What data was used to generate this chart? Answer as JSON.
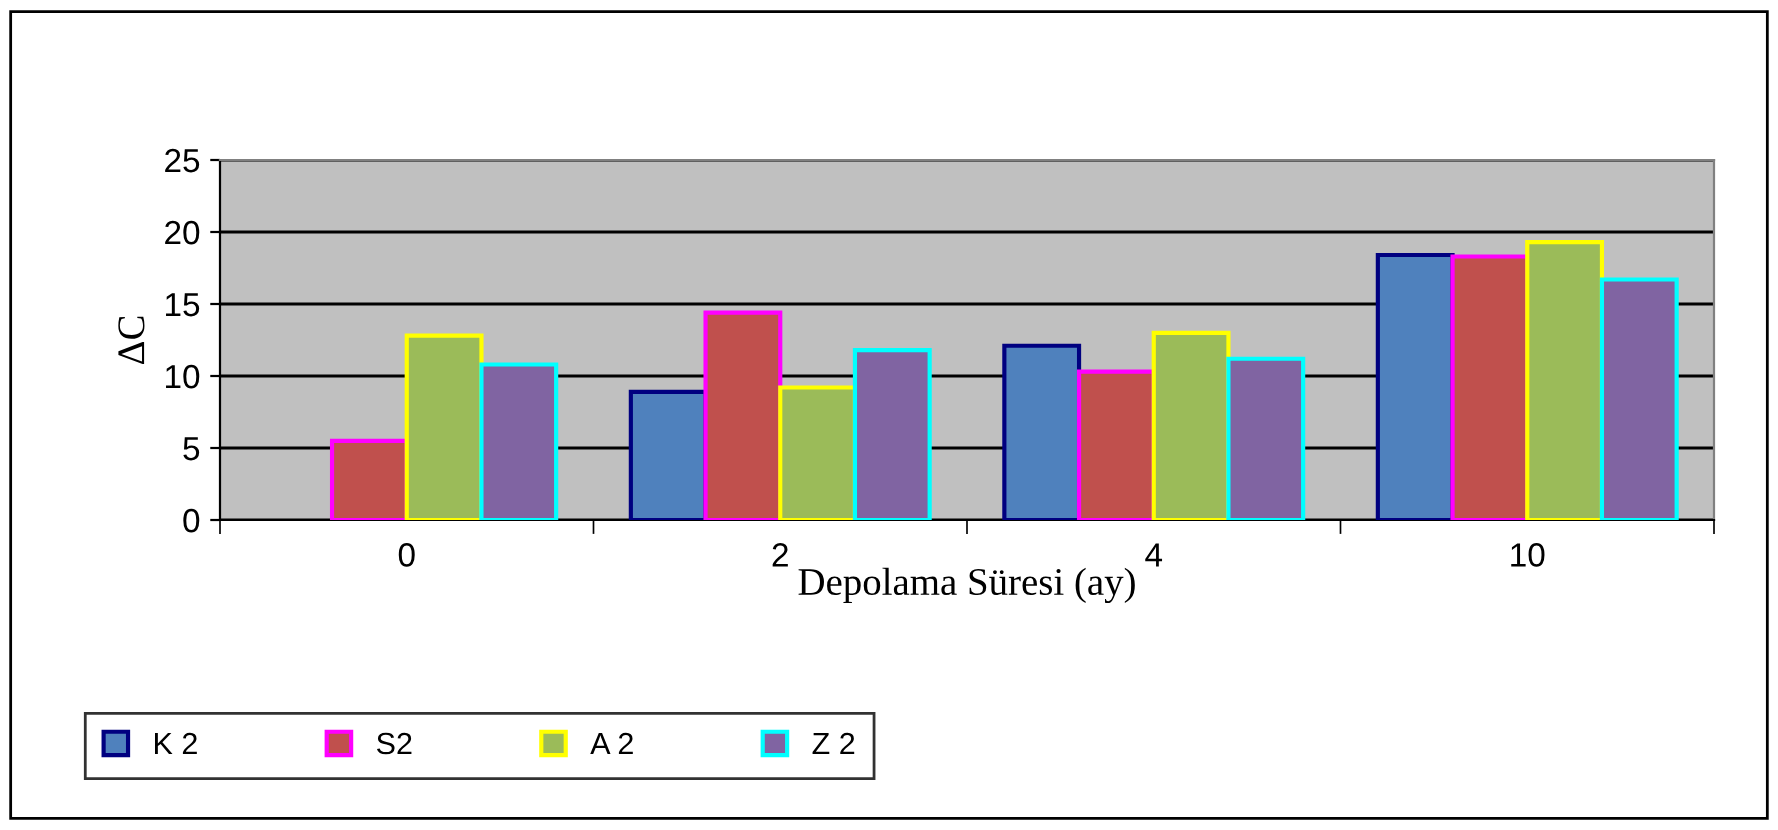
{
  "chart_data": {
    "type": "bar",
    "xlabel": "Depolama Süresi (ay)",
    "ylabel": "ΔC",
    "categories": [
      "0",
      "2",
      "4",
      "10"
    ],
    "series": [
      {
        "name": "K 2",
        "color": "#4f81bd",
        "values": [
          null,
          8.9,
          12.1,
          18.4
        ]
      },
      {
        "name": "S2",
        "color": "#c0504d",
        "values": [
          5.5,
          14.4,
          10.3,
          18.3
        ]
      },
      {
        "name": "A 2",
        "color": "#9bbb59",
        "values": [
          12.8,
          9.2,
          13.0,
          19.3
        ]
      },
      {
        "name": "Z 2",
        "color": "#8064a2",
        "values": [
          10.8,
          11.8,
          11.2,
          16.7
        ]
      }
    ],
    "ylim": [
      0,
      25
    ],
    "yticks": [
      0,
      5,
      10,
      15,
      20,
      25
    ],
    "grid": "y",
    "legend": "bottom left"
  }
}
